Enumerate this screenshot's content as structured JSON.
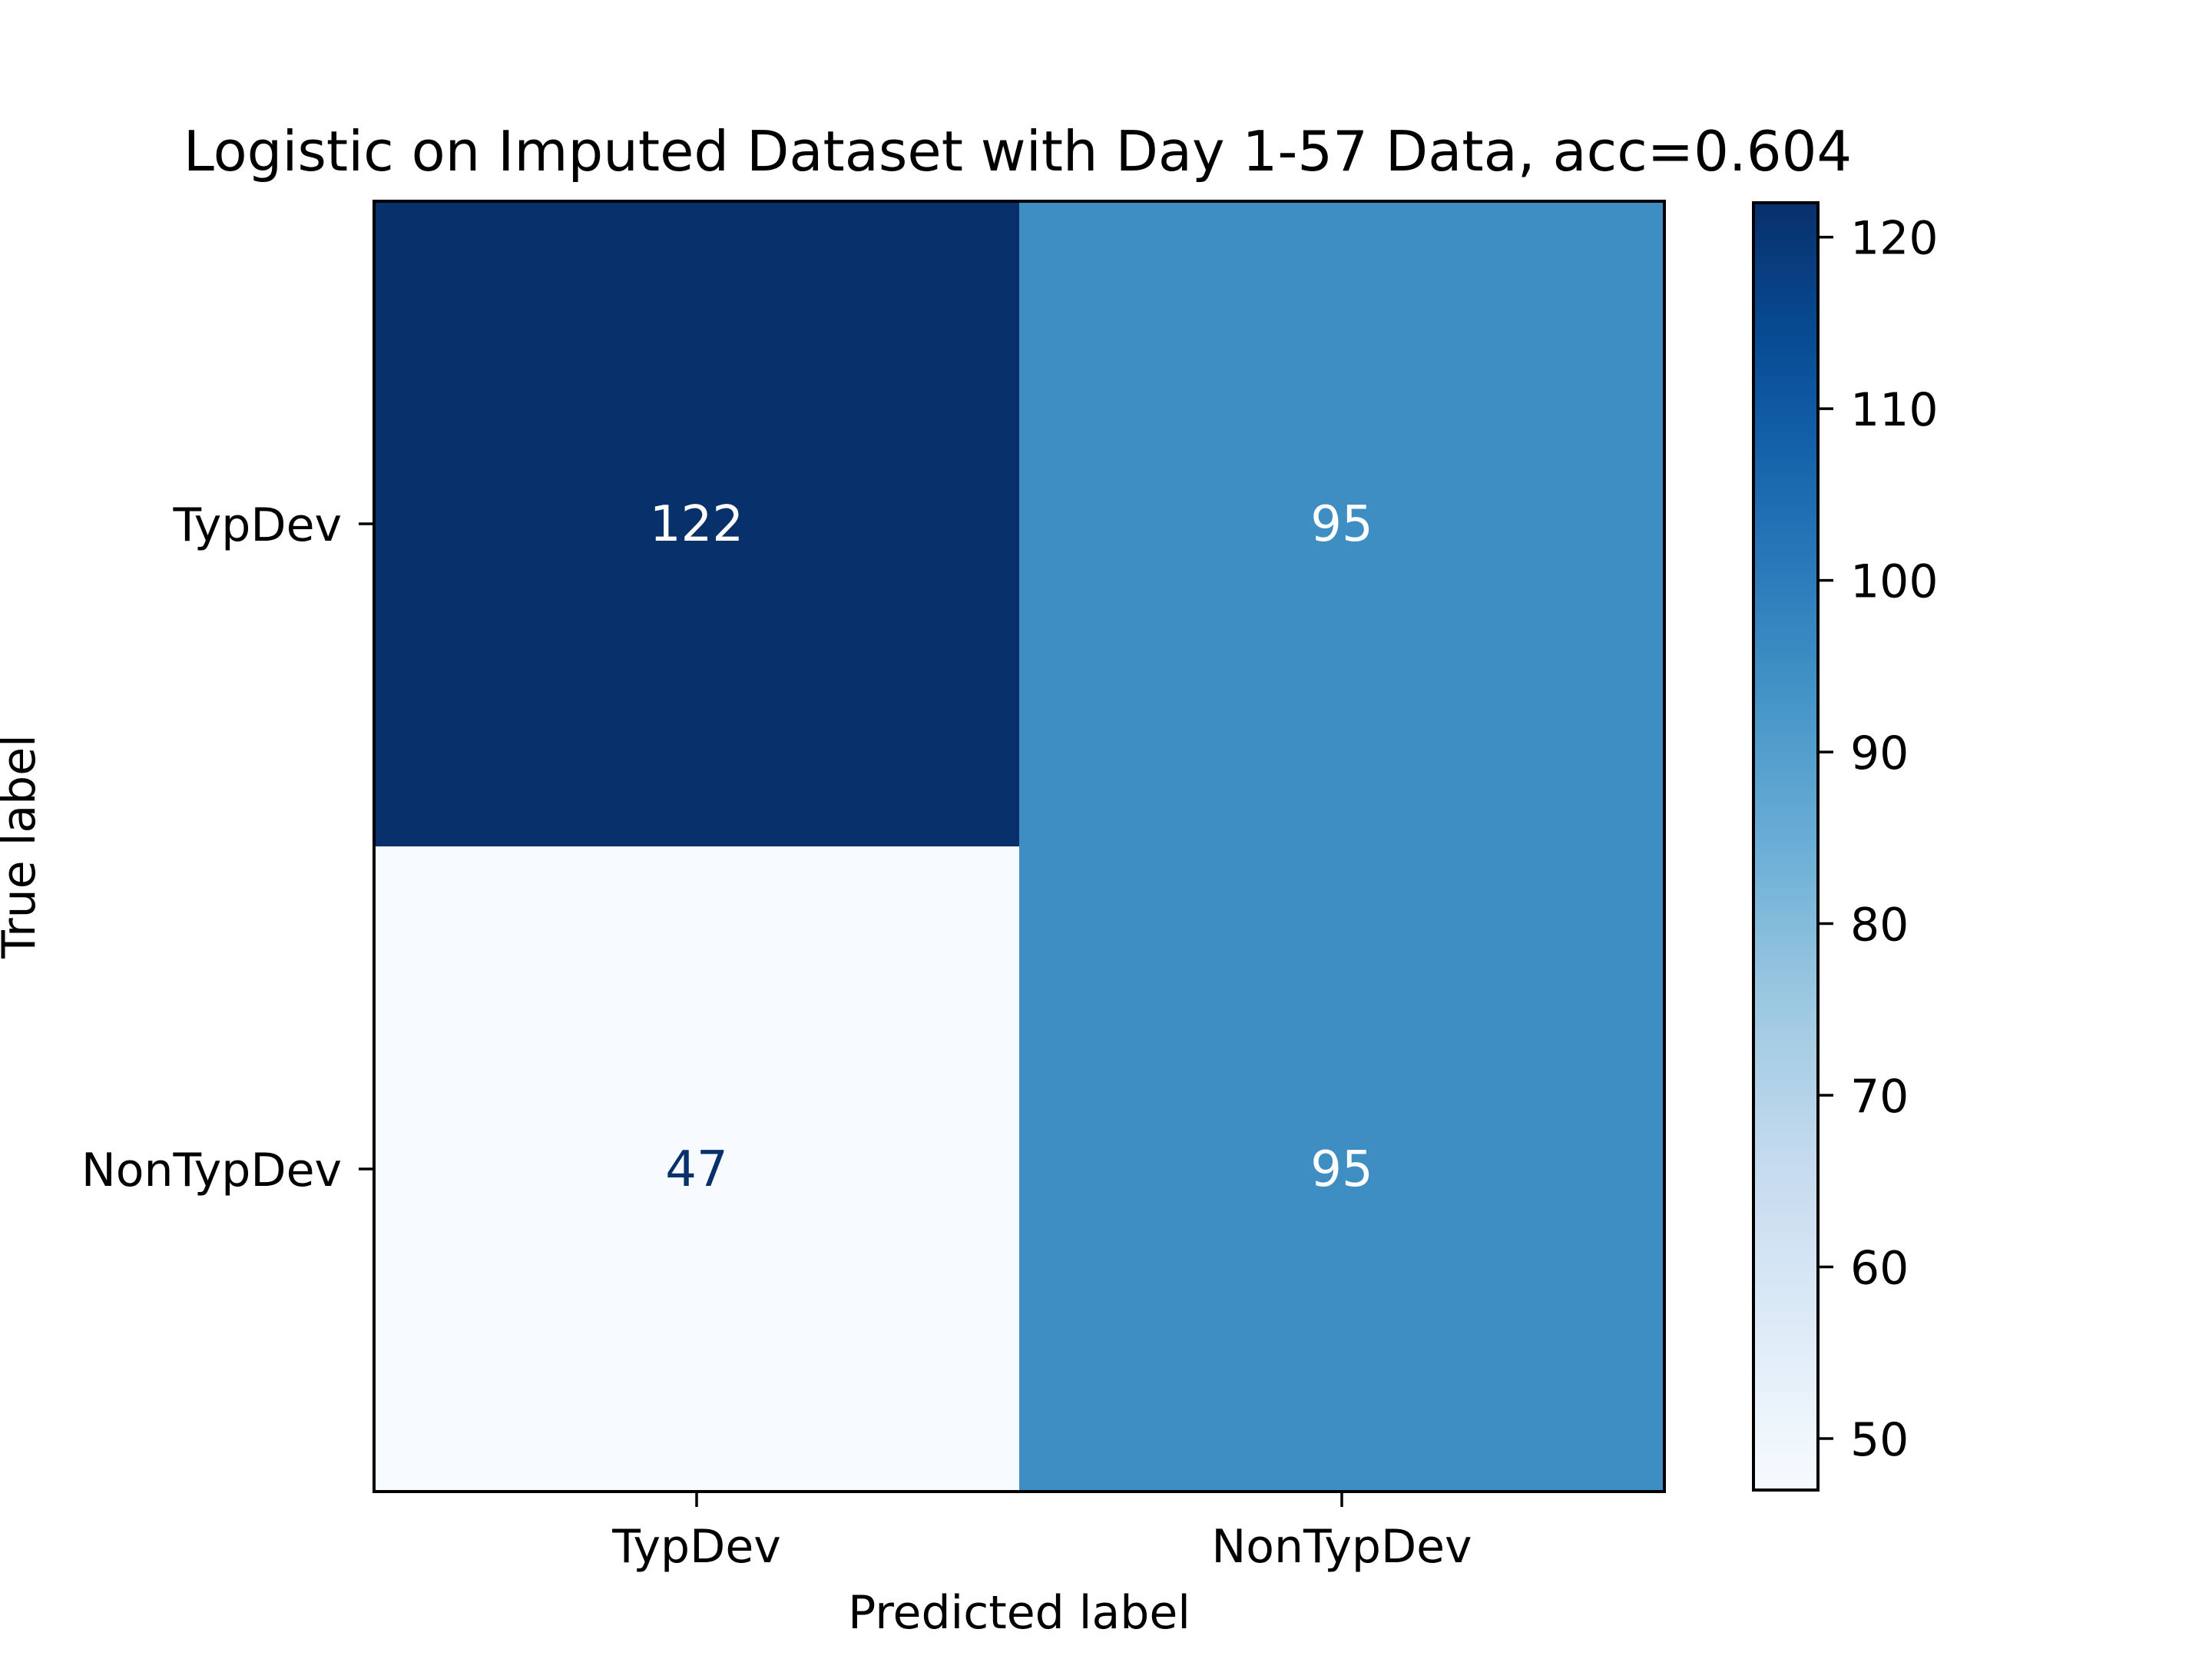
{
  "chart_data": {
    "type": "heatmap",
    "title": "Logistic on Imputed Dataset with Day 1-57 Data, acc=0.604",
    "xlabel": "Predicted label",
    "ylabel": "True label",
    "x_categories": [
      "TypDev",
      "NonTypDev"
    ],
    "y_categories": [
      "TypDev",
      "NonTypDev"
    ],
    "values": [
      [
        122,
        95
      ],
      [
        47,
        95
      ]
    ],
    "colormap": "Blues",
    "colorbar": {
      "range": [
        47,
        122
      ],
      "ticks": [
        50,
        60,
        70,
        80,
        90,
        100,
        110,
        120
      ]
    },
    "colors": {
      "min": "#f7fbff",
      "max": "#08306b",
      "text_dark": "#08306b",
      "text_light": "#ffffff"
    }
  }
}
